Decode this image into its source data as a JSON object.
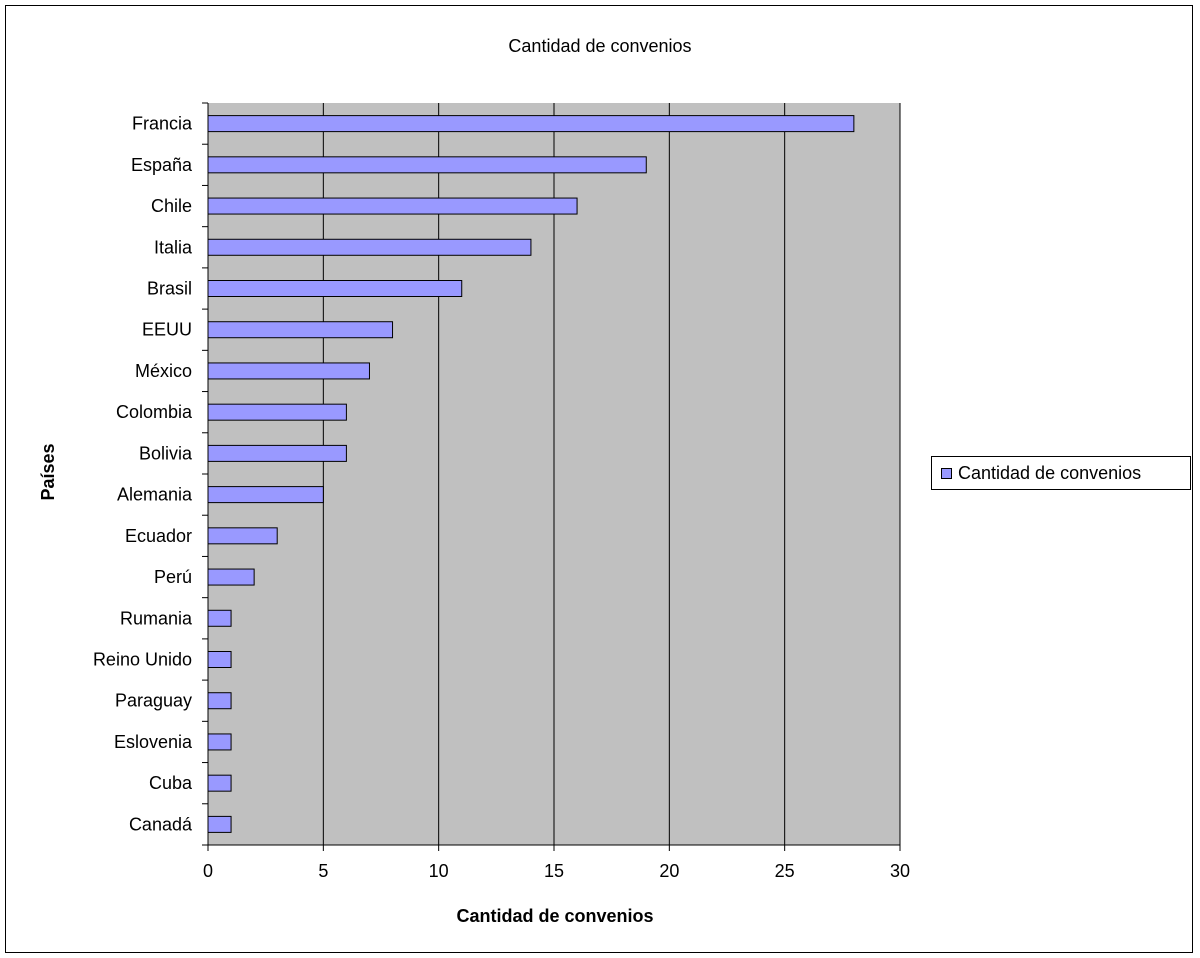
{
  "chart_data": {
    "type": "bar",
    "orientation": "horizontal",
    "title": "Cantidad de convenios",
    "xlabel": "Cantidad de convenios",
    "ylabel": "Países",
    "categories": [
      "Francia",
      "España",
      "Chile",
      "Italia",
      "Brasil",
      "EEUU",
      "México",
      "Colombia",
      "Bolivia",
      "Alemania",
      "Ecuador",
      "Perú",
      "Rumania",
      "Reino Unido",
      "Paraguay",
      "Eslovenia",
      "Cuba",
      "Canadá"
    ],
    "series": [
      {
        "name": "Cantidad de convenios",
        "values": [
          28,
          19,
          16,
          14,
          11,
          8,
          7,
          6,
          6,
          5,
          3,
          2,
          1,
          1,
          1,
          1,
          1,
          1
        ]
      }
    ],
    "xlim": [
      0,
      30
    ],
    "xticks": [
      "0",
      "5",
      "10",
      "15",
      "20",
      "25",
      "30"
    ],
    "grid": "vertical",
    "legend": "right",
    "colors": {
      "bar": "#9999ff",
      "plot_bg": "#c0c0c0",
      "grid": "#000000"
    }
  },
  "legend_label": "Cantidad de convenios"
}
